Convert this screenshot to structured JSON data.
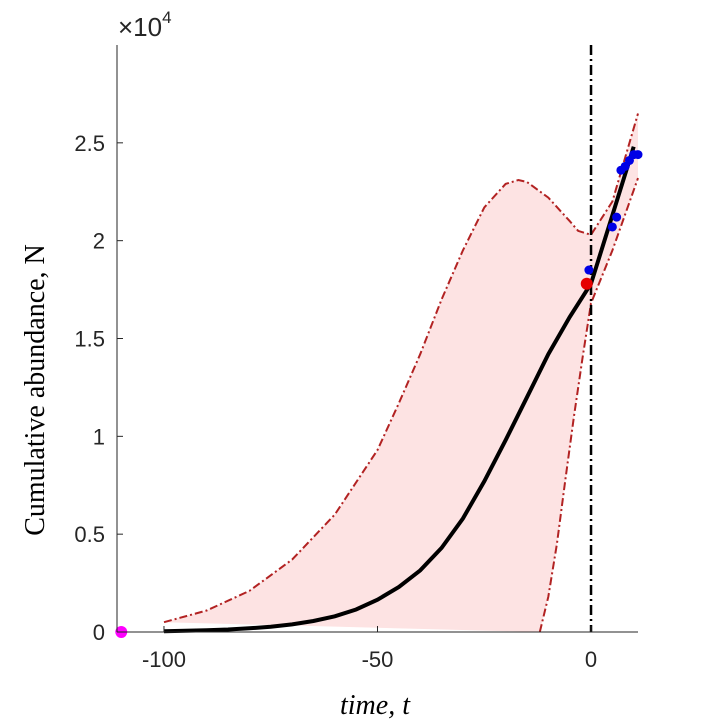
{
  "chart_data": {
    "type": "line",
    "xlabel": "time, t",
    "ylabel": "Cumulative abundance, N",
    "y_multiplier": {
      "base": "×10",
      "exponent": "4"
    },
    "xlim": [
      -111,
      11
    ],
    "ylim": [
      0,
      3
    ],
    "x_ticks": [
      -100,
      -50,
      0
    ],
    "x_tick_labels": [
      "-100",
      "-50",
      "0"
    ],
    "y_ticks": [
      0,
      0.5,
      1,
      1.5,
      2,
      2.5
    ],
    "y_tick_labels": [
      "0",
      "0.5",
      "1",
      "1.5",
      "2",
      "2.5"
    ],
    "grid": false,
    "colors": {
      "fit": "#000000",
      "band_fill": "#fde3e3",
      "band_edge": "#b22222",
      "observations": "#0000e6",
      "current_estimate": "#e60000",
      "start_point": "#ff00ff",
      "vline": "#000000"
    },
    "series": [
      {
        "role": "fit",
        "x": [
          -100,
          -95,
          -90,
          -85,
          -80,
          -75,
          -70,
          -65,
          -60,
          -55,
          -50,
          -45,
          -40,
          -35,
          -30,
          -25,
          -20,
          -15,
          -10,
          -5,
          0,
          5,
          10
        ],
        "y": [
          0.004,
          0.006,
          0.009,
          0.013,
          0.019,
          0.027,
          0.039,
          0.056,
          0.08,
          0.115,
          0.165,
          0.23,
          0.315,
          0.43,
          0.58,
          0.77,
          0.98,
          1.2,
          1.42,
          1.61,
          1.78,
          2.13,
          2.48
        ]
      },
      {
        "role": "band_upper",
        "x": [
          -100,
          -90,
          -80,
          -70,
          -60,
          -50,
          -45,
          -40,
          -35,
          -30,
          -25,
          -20,
          -17,
          -15,
          -10,
          -5,
          -3,
          0,
          5,
          11
        ],
        "y": [
          0.05,
          0.11,
          0.21,
          0.37,
          0.6,
          0.93,
          1.17,
          1.42,
          1.7,
          1.95,
          2.17,
          2.29,
          2.31,
          2.3,
          2.22,
          2.1,
          2.05,
          2.03,
          2.2,
          2.65
        ]
      },
      {
        "role": "band_lower",
        "x": [
          -12,
          -10,
          -8,
          -6,
          -4,
          -2,
          0,
          5,
          11
        ],
        "y": [
          0,
          0.18,
          0.45,
          0.78,
          1.1,
          1.4,
          1.68,
          1.95,
          2.32
        ]
      },
      {
        "role": "observations",
        "x": [
          -0.5,
          5,
          6,
          7,
          8,
          9,
          10,
          11
        ],
        "y": [
          1.85,
          2.07,
          2.12,
          2.36,
          2.38,
          2.41,
          2.44,
          2.44
        ]
      },
      {
        "role": "current_estimate",
        "x": [
          -1
        ],
        "y": [
          1.78
        ]
      },
      {
        "role": "start_point",
        "x": [
          -110
        ],
        "y": [
          0
        ]
      }
    ],
    "vline_x": 0
  }
}
